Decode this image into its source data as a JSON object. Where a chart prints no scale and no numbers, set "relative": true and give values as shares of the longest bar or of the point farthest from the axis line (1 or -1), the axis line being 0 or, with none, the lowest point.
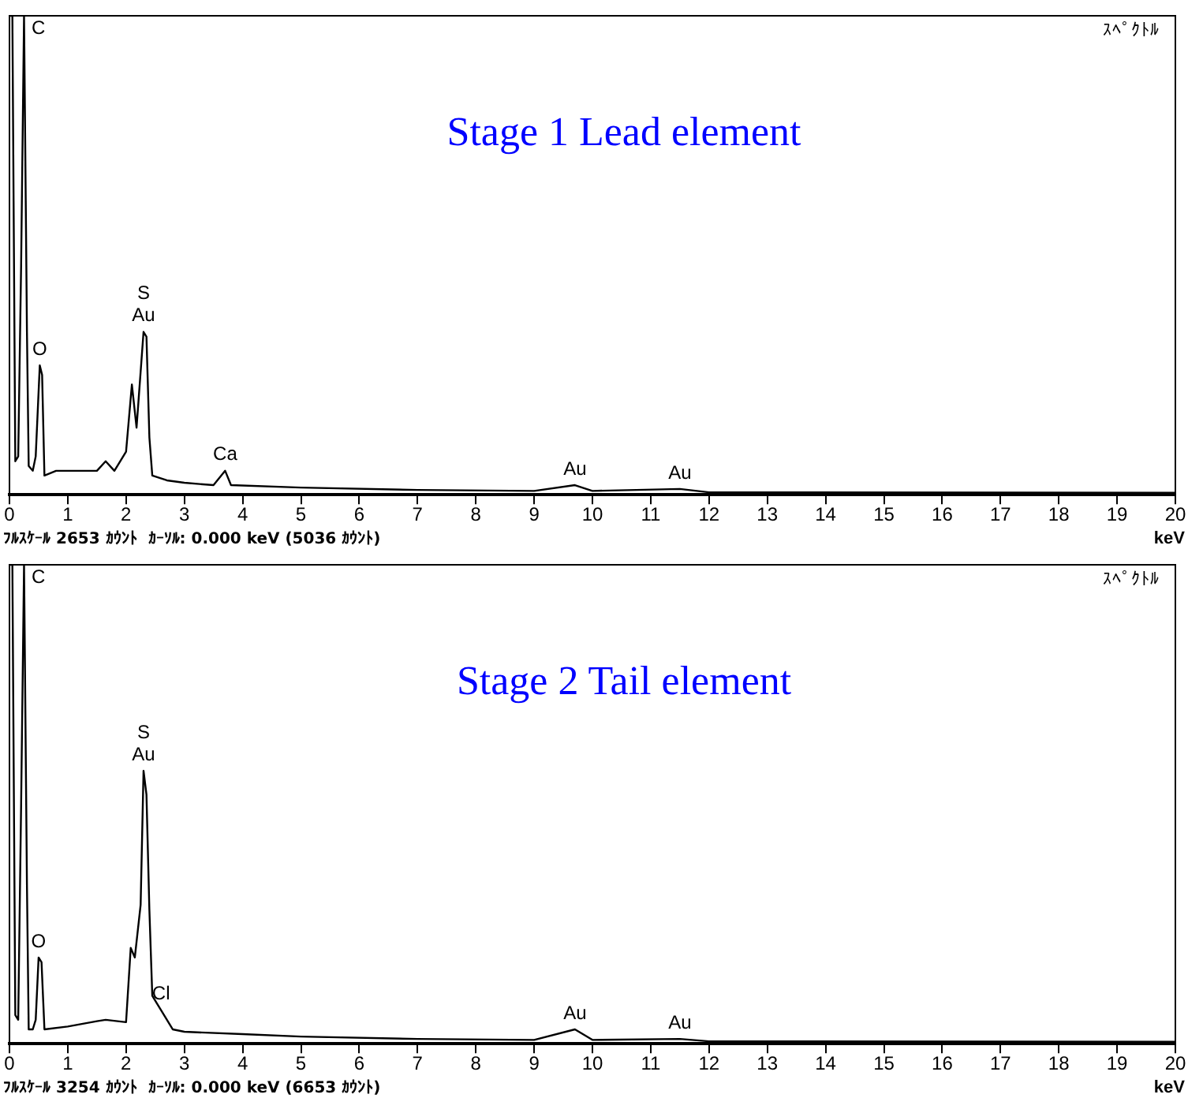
{
  "chart_data": [
    {
      "type": "line",
      "title": "Stage 1 Lead element",
      "subtitle": "ｽﾍﾟｸﾄﾙ",
      "xlabel": "keV",
      "relative": true,
      "grid": false,
      "legend": false,
      "marker": "none",
      "line_style": "solid",
      "xlim": [
        0,
        20
      ],
      "xticks": [
        0,
        1,
        2,
        3,
        4,
        5,
        6,
        7,
        8,
        9,
        10,
        11,
        12,
        13,
        14,
        15,
        16,
        17,
        18,
        19,
        20
      ],
      "series": [
        {
          "color": "#000000",
          "x": [
            0,
            0.05,
            0.1,
            0.15,
            0.2,
            0.25,
            0.3,
            0.33,
            0.4,
            0.45,
            0.52,
            0.56,
            0.6,
            0.8,
            1.0,
            1.5,
            1.65,
            1.8,
            2.0,
            2.1,
            2.18,
            2.3,
            2.35,
            2.4,
            2.45,
            2.7,
            3.0,
            3.5,
            3.7,
            3.8,
            5,
            7,
            9,
            9.7,
            10,
            11.5,
            12,
            20
          ],
          "values": [
            1,
            1,
            0.07,
            0.08,
            0.48,
            1,
            0.34,
            0.06,
            0.05,
            0.08,
            0.27,
            0.25,
            0.04,
            0.05,
            0.05,
            0.05,
            0.07,
            0.05,
            0.09,
            0.23,
            0.14,
            0.34,
            0.33,
            0.12,
            0.04,
            0.03,
            0.025,
            0.02,
            0.05,
            0.02,
            0.015,
            0.01,
            0.008,
            0.02,
            0.008,
            0.012,
            0.005,
            0.004
          ]
        }
      ],
      "annotations": [
        {
          "text": "C",
          "x": 0.27,
          "y": 1
        },
        {
          "text": "O",
          "x": 0.52,
          "y": 0.27
        },
        {
          "text": "Au",
          "x": 2.3,
          "y": 0.34
        },
        {
          "text": "S",
          "x": 2.3,
          "y": 0.34
        },
        {
          "text": "Ca",
          "x": 3.7,
          "y": 0.05
        },
        {
          "text": "Au",
          "x": 9.7,
          "y": 0.02
        },
        {
          "text": "Au",
          "x": 11.5,
          "y": 0.012
        },
        "ﾌﾙｽｹｰﾙ 2653 ｶｳﾝﾄ  ｶｰｿﾙ: 0.000 keV (5036 ｶｳﾝﾄ)"
      ]
    },
    {
      "type": "line",
      "title": "Stage 2 Tail element",
      "subtitle": "ｽﾍﾟｸﾄﾙ",
      "xlabel": "keV",
      "relative": true,
      "grid": false,
      "legend": false,
      "marker": "none",
      "line_style": "solid",
      "xlim": [
        0,
        20
      ],
      "xticks": [
        0,
        1,
        2,
        3,
        4,
        5,
        6,
        7,
        8,
        9,
        10,
        11,
        12,
        13,
        14,
        15,
        16,
        17,
        18,
        19,
        20
      ],
      "series": [
        {
          "color": "#000000",
          "x": [
            0,
            0.05,
            0.1,
            0.15,
            0.2,
            0.25,
            0.3,
            0.33,
            0.4,
            0.45,
            0.5,
            0.55,
            0.6,
            1.0,
            1.5,
            1.65,
            2.0,
            2.08,
            2.15,
            2.25,
            2.3,
            2.35,
            2.4,
            2.45,
            2.6,
            2.8,
            3,
            4,
            5,
            7,
            9,
            9.7,
            10,
            11.5,
            12,
            20
          ],
          "values": [
            1,
            1,
            0.06,
            0.05,
            0.5,
            1,
            0.33,
            0.03,
            0.03,
            0.05,
            0.18,
            0.17,
            0.03,
            0.036,
            0.047,
            0.05,
            0.045,
            0.2,
            0.18,
            0.29,
            0.57,
            0.52,
            0.28,
            0.1,
            0.07,
            0.03,
            0.025,
            0.02,
            0.015,
            0.01,
            0.008,
            0.03,
            0.008,
            0.01,
            0.005,
            0.004
          ]
        }
      ],
      "annotations": [
        {
          "text": "C",
          "x": 0.27,
          "y": 1
        },
        {
          "text": "O",
          "x": 0.5,
          "y": 0.18
        },
        {
          "text": "Au",
          "x": 2.3,
          "y": 0.57
        },
        {
          "text": "S",
          "x": 2.3,
          "y": 0.57
        },
        {
          "text": "Cl",
          "x": 2.6,
          "y": 0.07
        },
        {
          "text": "Au",
          "x": 9.7,
          "y": 0.03
        },
        {
          "text": "Au",
          "x": 11.5,
          "y": 0.01
        },
        "ﾌﾙｽｹｰﾙ 3254 ｶｳﾝﾄ  ｶｰｿﾙ: 0.000 keV (6653 ｶｳﾝﾄ)"
      ]
    }
  ]
}
